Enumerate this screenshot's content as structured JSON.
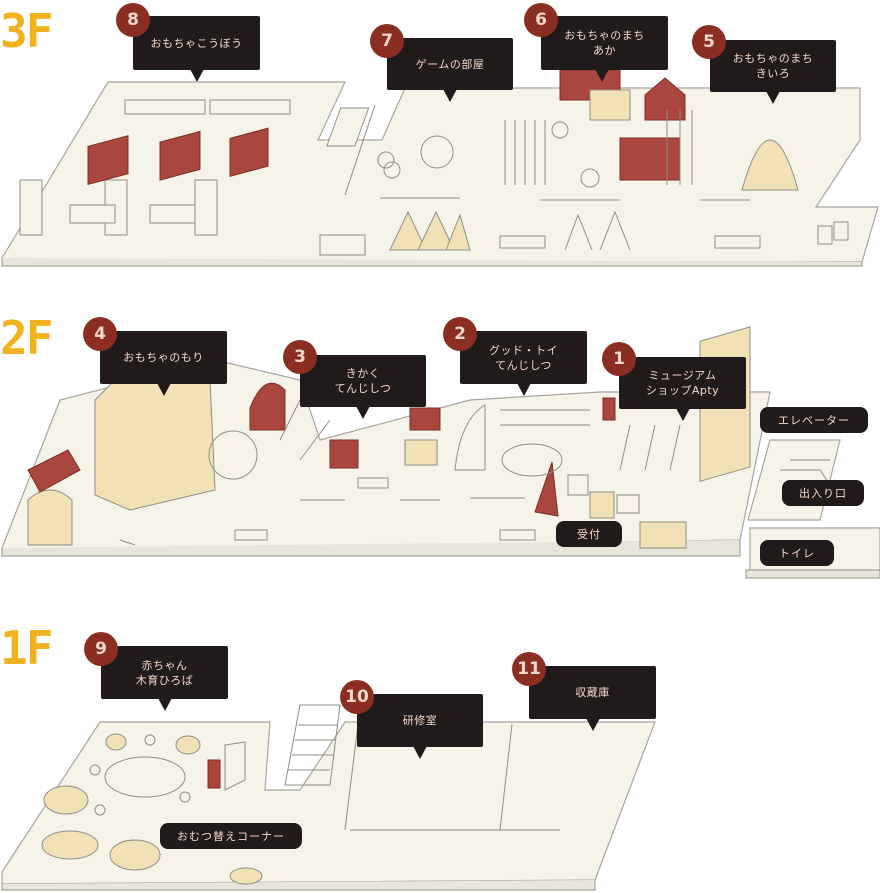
{
  "floors": {
    "f3": "3F",
    "f2": "2F",
    "f1": "1F"
  },
  "areas": {
    "a1": {
      "num": "1",
      "label": "ミュージアム\nショップApty"
    },
    "a2": {
      "num": "2",
      "label": "グッド・トイ\nてんじしつ"
    },
    "a3": {
      "num": "3",
      "label": "きかく\nてんじしつ"
    },
    "a4": {
      "num": "4",
      "label": "おもちゃのもり"
    },
    "a5": {
      "num": "5",
      "label": "おもちゃのまち\nきいろ"
    },
    "a6": {
      "num": "6",
      "label": "おもちゃのまち\nあか"
    },
    "a7": {
      "num": "7",
      "label": "ゲームの部屋"
    },
    "a8": {
      "num": "8",
      "label": "おもちゃこうぼう"
    },
    "a9": {
      "num": "9",
      "label": "赤ちゃん\n木育ひろば"
    },
    "a10": {
      "num": "10",
      "label": "研修室"
    },
    "a11": {
      "num": "11",
      "label": "収蔵庫"
    }
  },
  "facilities": {
    "elevator": "エレベーター",
    "entrance": "出入り口",
    "restroom": "トイレ",
    "reception": "受付",
    "nursing": "おむつ替えコーナー"
  },
  "colors": {
    "floor": "#f6f3e9",
    "outline": "#9a9a93",
    "wood": "#f3e2b8",
    "red": "#8b2e22",
    "callout": "#211a1a",
    "floor_label": "#f0b21e"
  }
}
